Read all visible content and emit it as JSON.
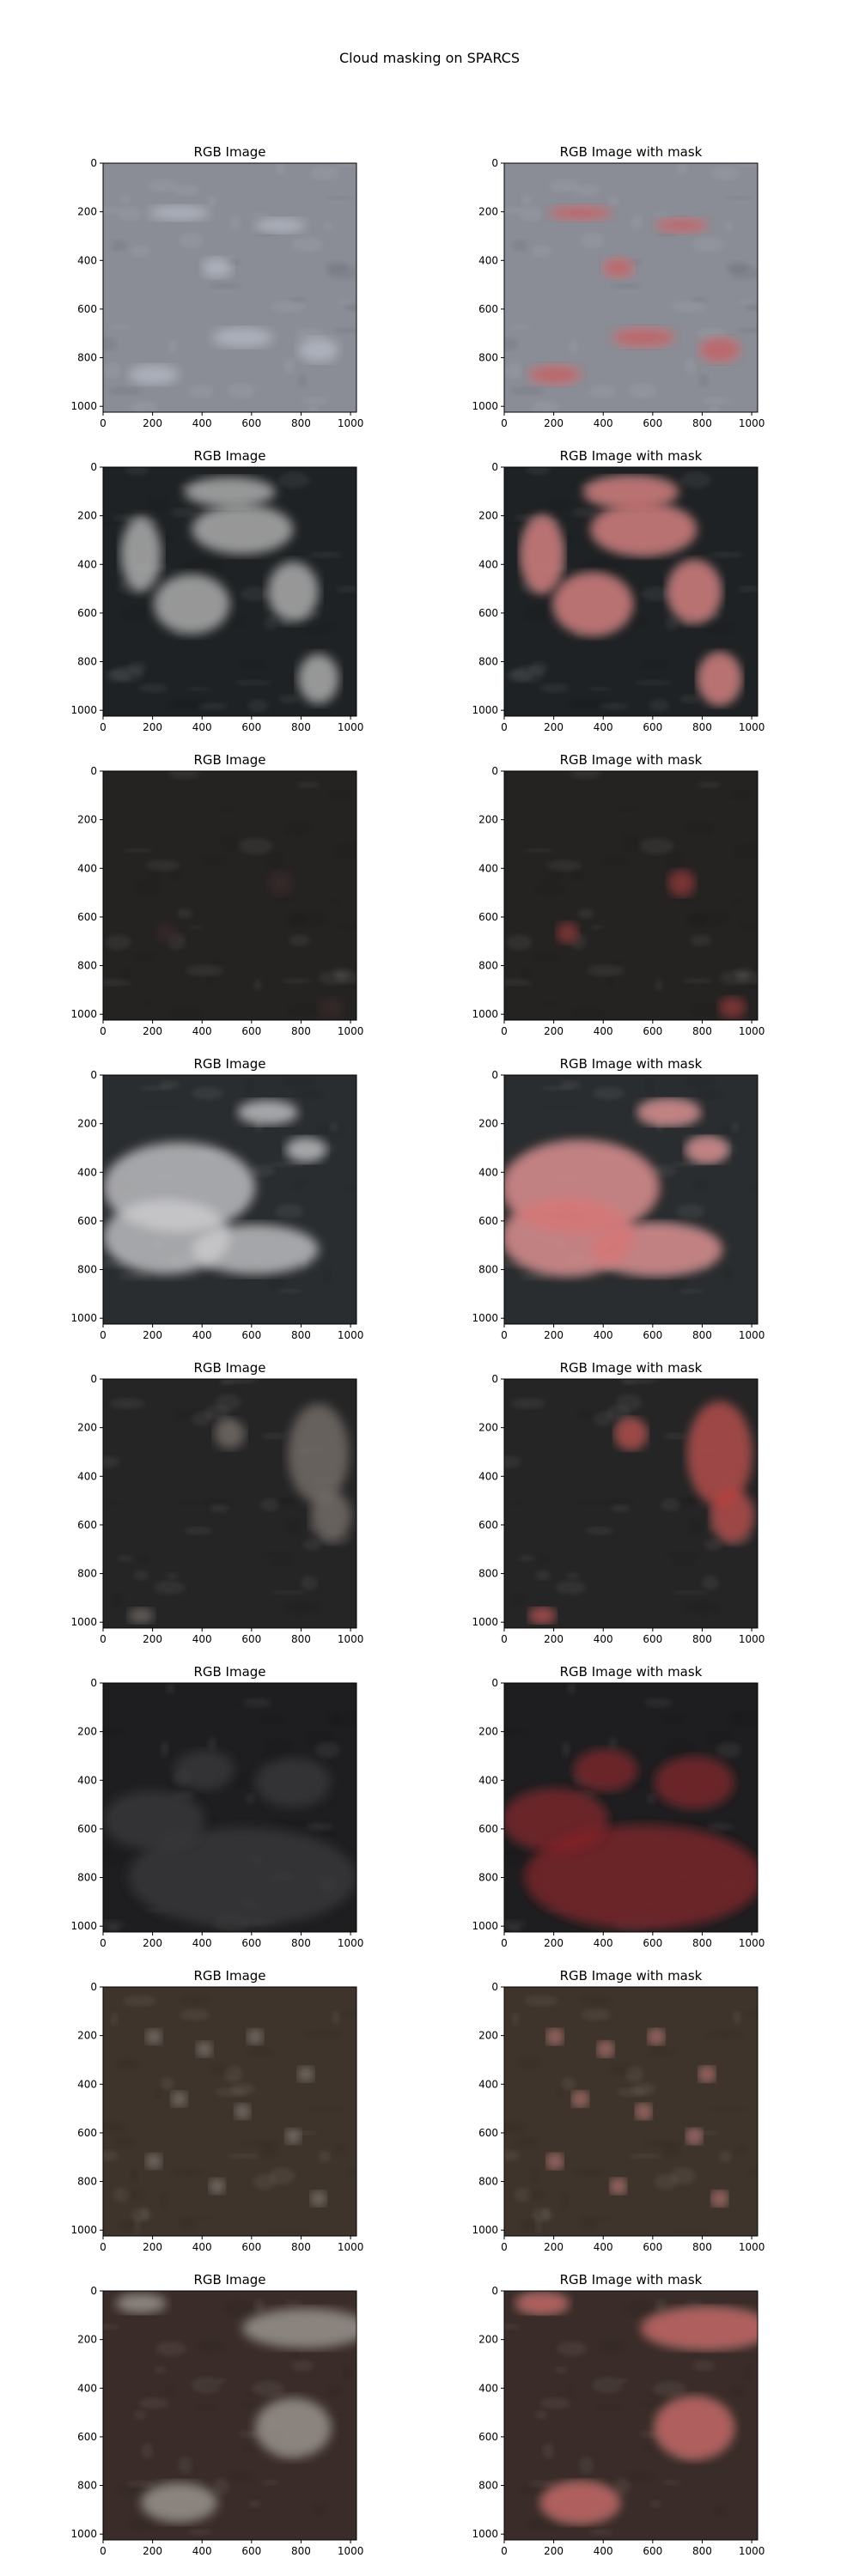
{
  "figure": {
    "title": "Cloud masking on SPARCS"
  },
  "axis_ticks": [
    "0",
    "200",
    "400",
    "600",
    "800",
    "1000"
  ],
  "panels": [
    {
      "left_title": "RGB Image",
      "right_title": "RGB Image with mask",
      "tone": "#8a8d96",
      "feature": "#b8bcc6",
      "mask": "#c33a3a"
    },
    {
      "left_title": "RGB Image",
      "right_title": "RGB Image with mask",
      "tone": "#1f2224",
      "feature": "#bfbfbf",
      "mask": "#d15a5a"
    },
    {
      "left_title": "RGB Image",
      "right_title": "RGB Image with mask",
      "tone": "#252222",
      "feature": "#3a2b2b",
      "mask": "#a83c3c"
    },
    {
      "left_title": "RGB Image",
      "right_title": "RGB Image with mask",
      "tone": "#2a2d2f",
      "feature": "#cfcfd2",
      "mask": "#d56b6b"
    },
    {
      "left_title": "RGB Image",
      "right_title": "RGB Image with mask",
      "tone": "#262526",
      "feature": "#7b756e",
      "mask": "#c23737"
    },
    {
      "left_title": "RGB Image",
      "right_title": "RGB Image with mask",
      "tone": "#1e1e20",
      "feature": "#3a3a3d",
      "mask": "#8f1f24"
    },
    {
      "left_title": "RGB Image",
      "right_title": "RGB Image with mask",
      "tone": "#3e342b",
      "feature": "#8f8a86",
      "mask": "#b85a5a"
    },
    {
      "left_title": "RGB Image",
      "right_title": "RGB Image with mask",
      "tone": "#3a2d29",
      "feature": "#a5a09b",
      "mask": "#c94848"
    }
  ]
}
